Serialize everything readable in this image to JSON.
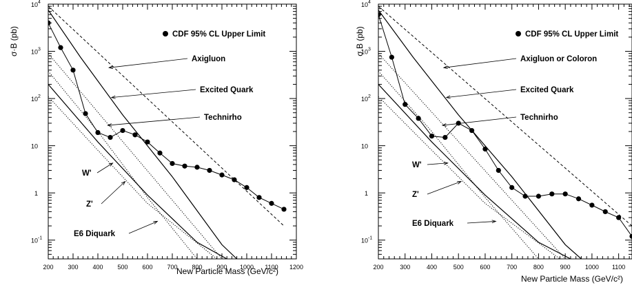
{
  "chart_data": [
    {
      "type": "line",
      "ylabel": "σ·B (pb)",
      "xlabel": "New Particle Mass (GeV/c²)",
      "x_scale": "linear",
      "y_scale": "log",
      "xlim": [
        200,
        1200
      ],
      "ylim": [
        0.04,
        10000
      ],
      "x_ticks": [
        200,
        300,
        400,
        500,
        600,
        700,
        800,
        900,
        1000,
        1100,
        1200
      ],
      "y_ticks": [
        {
          "value": 0.1,
          "label": "10",
          "exp": "-1"
        },
        {
          "value": 1,
          "label": "1",
          "exp": ""
        },
        {
          "value": 10,
          "label": "10",
          "exp": ""
        },
        {
          "value": 100,
          "label": "10",
          "exp": "2"
        },
        {
          "value": 1000,
          "label": "10",
          "exp": "3"
        },
        {
          "value": 10000,
          "label": "10",
          "exp": "4"
        }
      ],
      "legend": {
        "label": "CDF 95% CL Upper Limit",
        "placement": "top-right"
      },
      "limit": {
        "x": [
          200,
          250,
          300,
          350,
          400,
          450,
          500,
          550,
          600,
          650,
          700,
          750,
          800,
          850,
          900,
          950,
          1000,
          1050,
          1100,
          1150
        ],
        "y": [
          4000,
          1200,
          400,
          48,
          19,
          15,
          21,
          17,
          12,
          7,
          4.2,
          3.7,
          3.5,
          3.0,
          2.4,
          1.9,
          1.3,
          0.8,
          0.6,
          0.45
        ]
      },
      "theory_curves": [
        {
          "name": "Axigluon",
          "style": "dashed",
          "x": [
            200,
            1150
          ],
          "y": [
            9000,
            0.2
          ]
        },
        {
          "name": "Excited Quark",
          "style": "solid",
          "x": [
            200,
            330,
            500,
            700,
            900,
            960
          ],
          "y": [
            7500,
            750,
            45,
            2.2,
            0.08,
            0.04
          ]
        },
        {
          "name": "Technirho",
          "style": "dotted",
          "x": [
            200,
            900
          ],
          "y": [
            900,
            0.04
          ]
        },
        {
          "name": "W'",
          "style": "solid",
          "x": [
            200,
            400,
            600,
            800,
            920
          ],
          "y": [
            200,
            12,
            0.9,
            0.09,
            0.04
          ]
        },
        {
          "name": "Z'",
          "style": "dotted",
          "x": [
            200,
            400,
            600,
            880
          ],
          "y": [
            110,
            8,
            0.6,
            0.04
          ]
        },
        {
          "name": "E6 Diquark",
          "style": "dotted",
          "x": [
            200,
            400,
            600,
            800
          ],
          "y": [
            380,
            20,
            0.8,
            0.04
          ]
        }
      ],
      "annotations": [
        {
          "text": "Axigluon",
          "value_x": 445,
          "value_y": 450
        },
        {
          "text": "Excited Quark",
          "value_x": 455,
          "value_y": 105
        },
        {
          "text": "Technirho",
          "value_x": 440,
          "value_y": 27
        },
        {
          "text": "W'",
          "value_x": 460,
          "value_y": 4.3
        },
        {
          "text": "Z'",
          "value_x": 510,
          "value_y": 1.75
        },
        {
          "text": "E6 Diquark",
          "value_x": 640,
          "value_y": 0.25
        }
      ]
    },
    {
      "type": "line",
      "ylabel": "σ.B (pb)",
      "xlabel": "New Particle Mass (GeV/c²)",
      "x_scale": "linear",
      "y_scale": "log",
      "xlim": [
        200,
        1150
      ],
      "ylim": [
        0.04,
        10000
      ],
      "x_ticks": [
        200,
        300,
        400,
        500,
        600,
        700,
        800,
        900,
        1000,
        1100
      ],
      "y_ticks": [
        {
          "value": 0.1,
          "label": "10",
          "exp": "-1"
        },
        {
          "value": 1,
          "label": "1",
          "exp": ""
        },
        {
          "value": 10,
          "label": "10",
          "exp": ""
        },
        {
          "value": 100,
          "label": "10",
          "exp": "2"
        },
        {
          "value": 1000,
          "label": "10",
          "exp": "3"
        },
        {
          "value": 10000,
          "label": "10",
          "exp": "4"
        }
      ],
      "legend": {
        "label": "CDF 95% CL Upper Limit",
        "placement": "top-right"
      },
      "limit": {
        "x": [
          200,
          250,
          300,
          350,
          400,
          450,
          500,
          550,
          600,
          650,
          700,
          750,
          800,
          850,
          900,
          950,
          1000,
          1050,
          1100,
          1150
        ],
        "y": [
          6000,
          750,
          75,
          38,
          16,
          15,
          30,
          21,
          8.5,
          3.0,
          1.3,
          0.85,
          0.85,
          0.95,
          0.95,
          0.75,
          0.55,
          0.4,
          0.3,
          0.12
        ]
      },
      "theory_curves": [
        {
          "name": "Axigluon or Coloron",
          "style": "dashed",
          "x": [
            200,
            1150
          ],
          "y": [
            9000,
            0.2
          ]
        },
        {
          "name": "Excited Quark",
          "style": "solid",
          "x": [
            200,
            330,
            500,
            700,
            900,
            960
          ],
          "y": [
            7500,
            750,
            45,
            2.2,
            0.08,
            0.04
          ]
        },
        {
          "name": "Technirho",
          "style": "dotted",
          "x": [
            200,
            900
          ],
          "y": [
            900,
            0.04
          ]
        },
        {
          "name": "W'",
          "style": "solid",
          "x": [
            200,
            400,
            600,
            800,
            920
          ],
          "y": [
            200,
            12,
            0.9,
            0.09,
            0.04
          ]
        },
        {
          "name": "Z'",
          "style": "dotted",
          "x": [
            200,
            400,
            600,
            880
          ],
          "y": [
            110,
            8,
            0.6,
            0.04
          ]
        },
        {
          "name": "E6 Diquark",
          "style": "dotted",
          "x": [
            200,
            400,
            600,
            800
          ],
          "y": [
            380,
            20,
            0.8,
            0.04
          ]
        }
      ],
      "annotations": [
        {
          "text": "Axigluon or Coloron",
          "value_x": 445,
          "value_y": 450
        },
        {
          "text": "Excited Quark",
          "value_x": 455,
          "value_y": 105
        },
        {
          "text": "Technirho",
          "value_x": 440,
          "value_y": 27
        },
        {
          "text": "W'",
          "value_x": 460,
          "value_y": 4.3
        },
        {
          "text": "Z'",
          "value_x": 510,
          "value_y": 1.75
        },
        {
          "text": "E6 Diquark",
          "value_x": 640,
          "value_y": 0.25
        }
      ]
    }
  ]
}
